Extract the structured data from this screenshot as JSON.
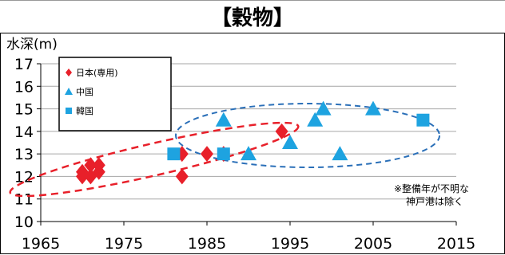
{
  "chart_data": {
    "type": "scatter",
    "title": "【穀物】",
    "ylabel": "水深(m)",
    "xlabel": "",
    "xlim": [
      1965,
      2015
    ],
    "ylim": [
      10,
      17
    ],
    "xticks": [
      1965,
      1975,
      1985,
      1995,
      2005,
      2015
    ],
    "yticks": [
      10,
      11,
      12,
      13,
      14,
      15,
      16,
      17
    ],
    "grid": true,
    "legend_position": "top-left",
    "note": [
      "※整備年が不明な",
      "神戸港は除く"
    ],
    "series": [
      {
        "name": "日本(専用)",
        "marker": "diamond",
        "color": "#e8202a",
        "points": [
          [
            1970,
            12.2
          ],
          [
            1971,
            12.0
          ],
          [
            1971,
            12.5
          ],
          [
            1972,
            12.2
          ],
          [
            1972,
            12.5
          ],
          [
            1970,
            12.0
          ],
          [
            1982,
            12.0
          ],
          [
            1982,
            13.0
          ],
          [
            1985,
            13.0
          ],
          [
            1987,
            13.0
          ],
          [
            1994,
            14.0
          ]
        ]
      },
      {
        "name": "中国",
        "marker": "triangle",
        "color": "#1ea3e0",
        "points": [
          [
            1987,
            14.5
          ],
          [
            1990,
            13.0
          ],
          [
            1995,
            13.5
          ],
          [
            1998,
            14.5
          ],
          [
            1999,
            15.0
          ],
          [
            2001,
            13.0
          ],
          [
            2005,
            15.0
          ]
        ]
      },
      {
        "name": "韓国",
        "marker": "square",
        "color": "#1ea3e0",
        "points": [
          [
            1981,
            13.0
          ],
          [
            1987,
            13.0
          ],
          [
            2011,
            14.5
          ]
        ]
      }
    ],
    "ellipse_colors": {
      "japan": "#e8202a",
      "overseas": "#2a6fb8"
    }
  }
}
